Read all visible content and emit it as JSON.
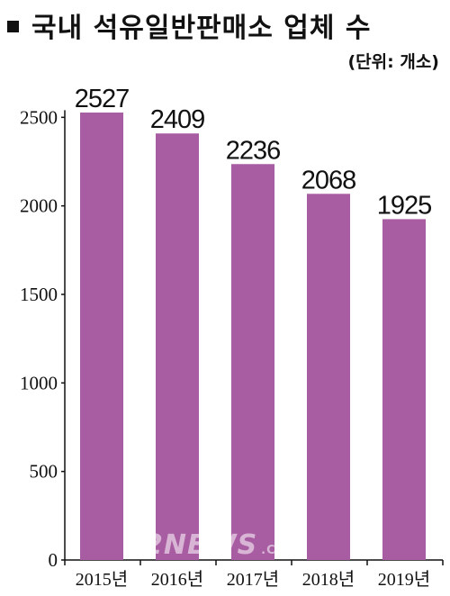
{
  "header": {
    "title": "국내 석유일반판매소 업체 수",
    "unit": "(단위: 개소)"
  },
  "watermark": {
    "brand": "2NEWS",
    "suffix": ".COM"
  },
  "colors": {
    "bar": "#a85ca2",
    "axis": "#111111",
    "text": "#111111"
  },
  "chart_data": {
    "type": "bar",
    "title": "국내 석유일반판매소 업체 수",
    "unit": "(단위: 개소)",
    "categories": [
      "2015년",
      "2016년",
      "2017년",
      "2018년",
      "2019년"
    ],
    "values": [
      2527,
      2409,
      2236,
      2068,
      1925
    ],
    "data_labels": [
      "2527",
      "2409",
      "2236",
      "2068",
      "1925"
    ],
    "ylim": [
      0,
      3000
    ],
    "yticks": [
      0,
      500,
      1000,
      1500,
      2000,
      2500
    ],
    "ytick_labels": [
      "0",
      "500",
      "1000",
      "1500",
      "2000",
      "2500"
    ],
    "grid": false,
    "legend": "none"
  }
}
